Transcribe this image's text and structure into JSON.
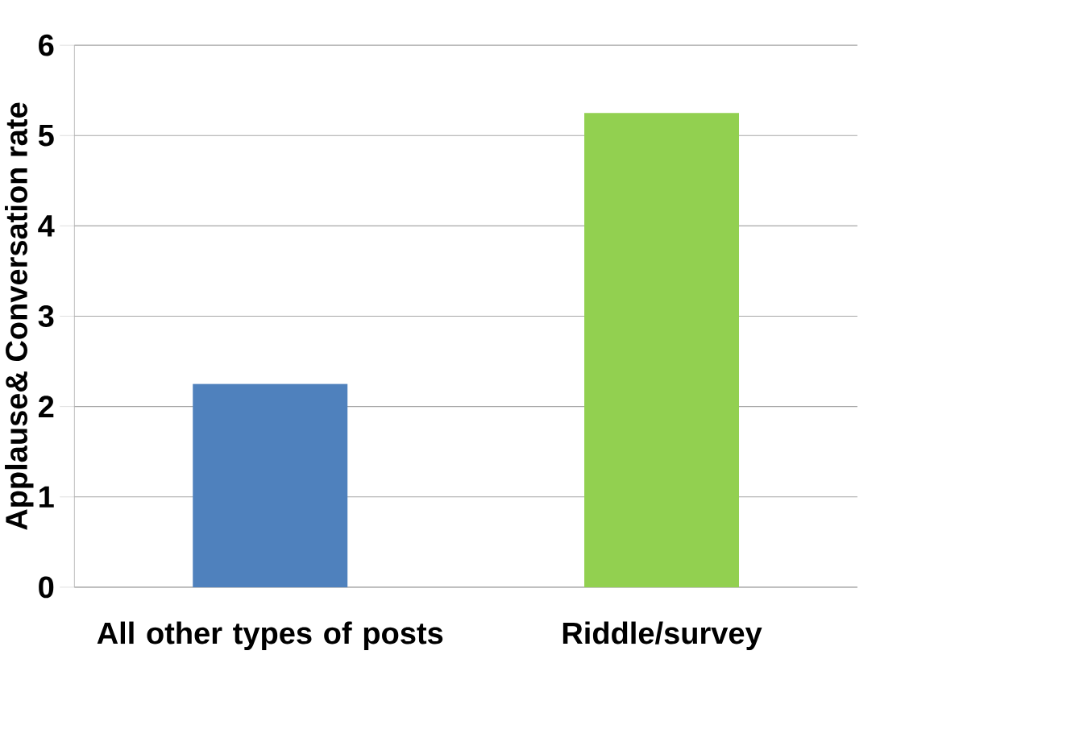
{
  "chart_data": {
    "type": "bar",
    "ylabel": "Applause& Conversation rate",
    "categories": [
      "All other types of posts",
      "Riddle/survey"
    ],
    "values": [
      2.25,
      5.25
    ],
    "colors": [
      "#4f81bd",
      "#92d050"
    ],
    "ylim": [
      0,
      6
    ],
    "yticks": [
      0,
      1,
      2,
      3,
      4,
      5,
      6
    ],
    "grid": "y"
  }
}
